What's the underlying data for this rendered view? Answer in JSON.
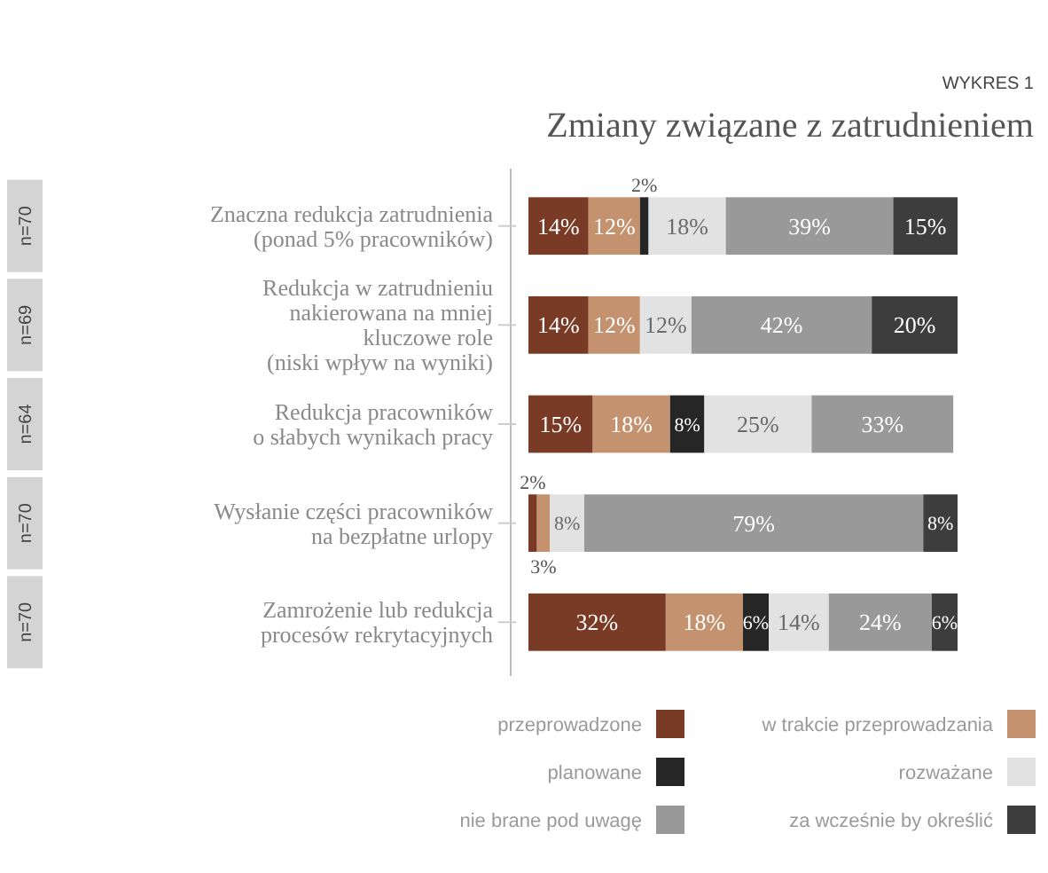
{
  "chart_data": {
    "type": "bar",
    "orientation": "horizontal",
    "stacked": true,
    "subtitle": "WYKRES 1",
    "title": "Zmiany związane z zatrudnieniem",
    "categories": [
      "Znaczna redukcja zatrudnienia\n(ponad 5% pracowników)",
      "Redukcja w zatrudnieniu\nnakierowana na mniej\nkluczowe role\n(niski wpływ na wyniki)",
      "Redukcja pracowników\no słabych wynikach pracy",
      "Wysłanie części pracowników\nna bezpłatne urlopy",
      "Zamrożenie lub redukcja\nprocesów rekrytacyjnych"
    ],
    "annotations": [
      "n=70",
      "n=69",
      "n=64",
      "n=70",
      "n=70"
    ],
    "series": [
      {
        "name": "przeprowadzone",
        "color": "#7a3b26",
        "values": [
          14,
          14,
          15,
          2,
          32
        ],
        "value_labels": [
          "14%",
          "14%",
          "15%",
          "2%",
          "32%"
        ]
      },
      {
        "name": "w trakcie przeprowadzania",
        "color": "#c4926f",
        "values": [
          12,
          12,
          18,
          3,
          18
        ],
        "value_labels": [
          "12%",
          "12%",
          "18%",
          "3%",
          "18%"
        ]
      },
      {
        "name": "planowane",
        "color": "#262626",
        "values": [
          2,
          null,
          8,
          null,
          6
        ],
        "value_labels": [
          "2%",
          null,
          "8%",
          null,
          "6%"
        ]
      },
      {
        "name": "rozważane",
        "color": "#e2e2e2",
        "values": [
          18,
          12,
          25,
          8,
          14
        ],
        "value_labels": [
          "18%",
          "12%",
          "25%",
          "8%",
          "14%"
        ]
      },
      {
        "name": "nie brane pod uwagę",
        "color": "#999999",
        "values": [
          39,
          42,
          33,
          79,
          24
        ],
        "value_labels": [
          "39%",
          "42%",
          "33%",
          "79%",
          "24%"
        ]
      },
      {
        "name": "za wcześnie by określić",
        "color": "#3d3d3d",
        "values": [
          15,
          20,
          null,
          8,
          6
        ],
        "value_labels": [
          "15%",
          "20%",
          null,
          "8%",
          "6%"
        ]
      }
    ],
    "tick_labels": "y",
    "legend": "bottom"
  }
}
